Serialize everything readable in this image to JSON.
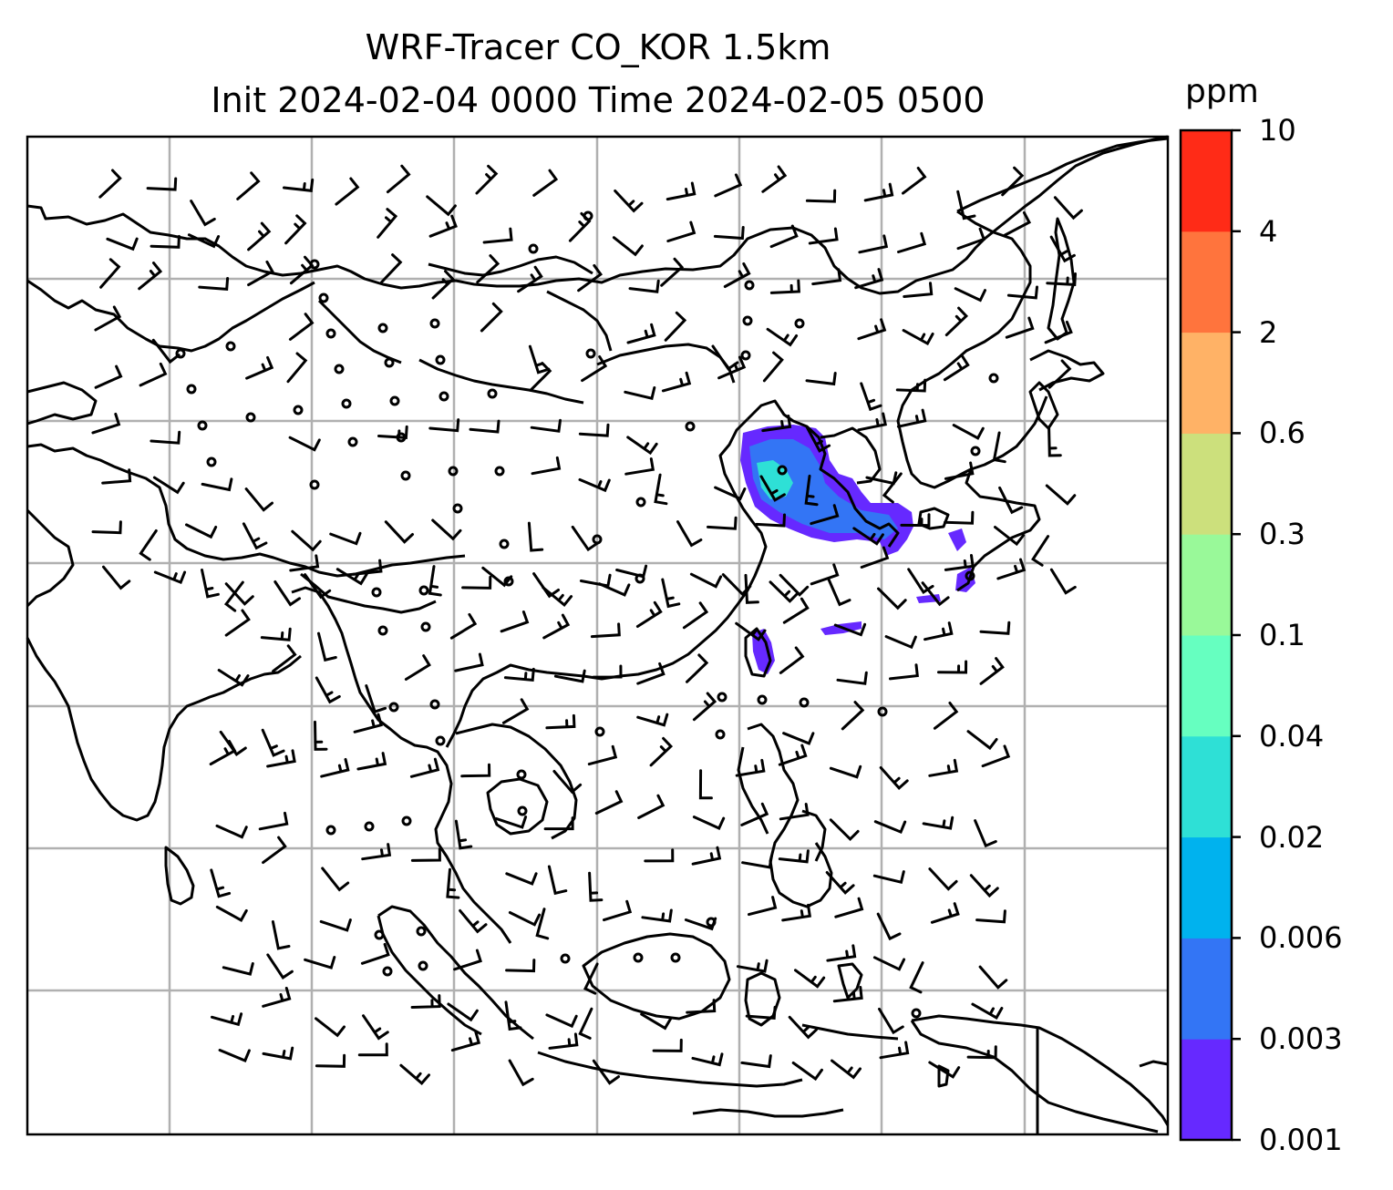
{
  "title": {
    "line1": "WRF-Tracer CO_KOR 1.5km",
    "line2": "Init 2024-02-04 0000 Time 2024-02-05 0500"
  },
  "colorbar": {
    "unit": "ppm",
    "levels": [
      "0.001",
      "0.003",
      "0.006",
      "0.02",
      "0.04",
      "0.1",
      "0.3",
      "0.6",
      "2",
      "4",
      "10"
    ],
    "colors": [
      "#6629ff",
      "#3375f5",
      "#00b2ee",
      "#2ee0d6",
      "#66ffc0",
      "#99f999",
      "#cce07c",
      "#ffb266",
      "#ff743d",
      "#ff2b17"
    ]
  },
  "map": {
    "gridlines": true,
    "plume_color_low": "#6629ff",
    "plume_color_mid": "#3375f5",
    "plume_color_high": "#2ee0d6"
  }
}
